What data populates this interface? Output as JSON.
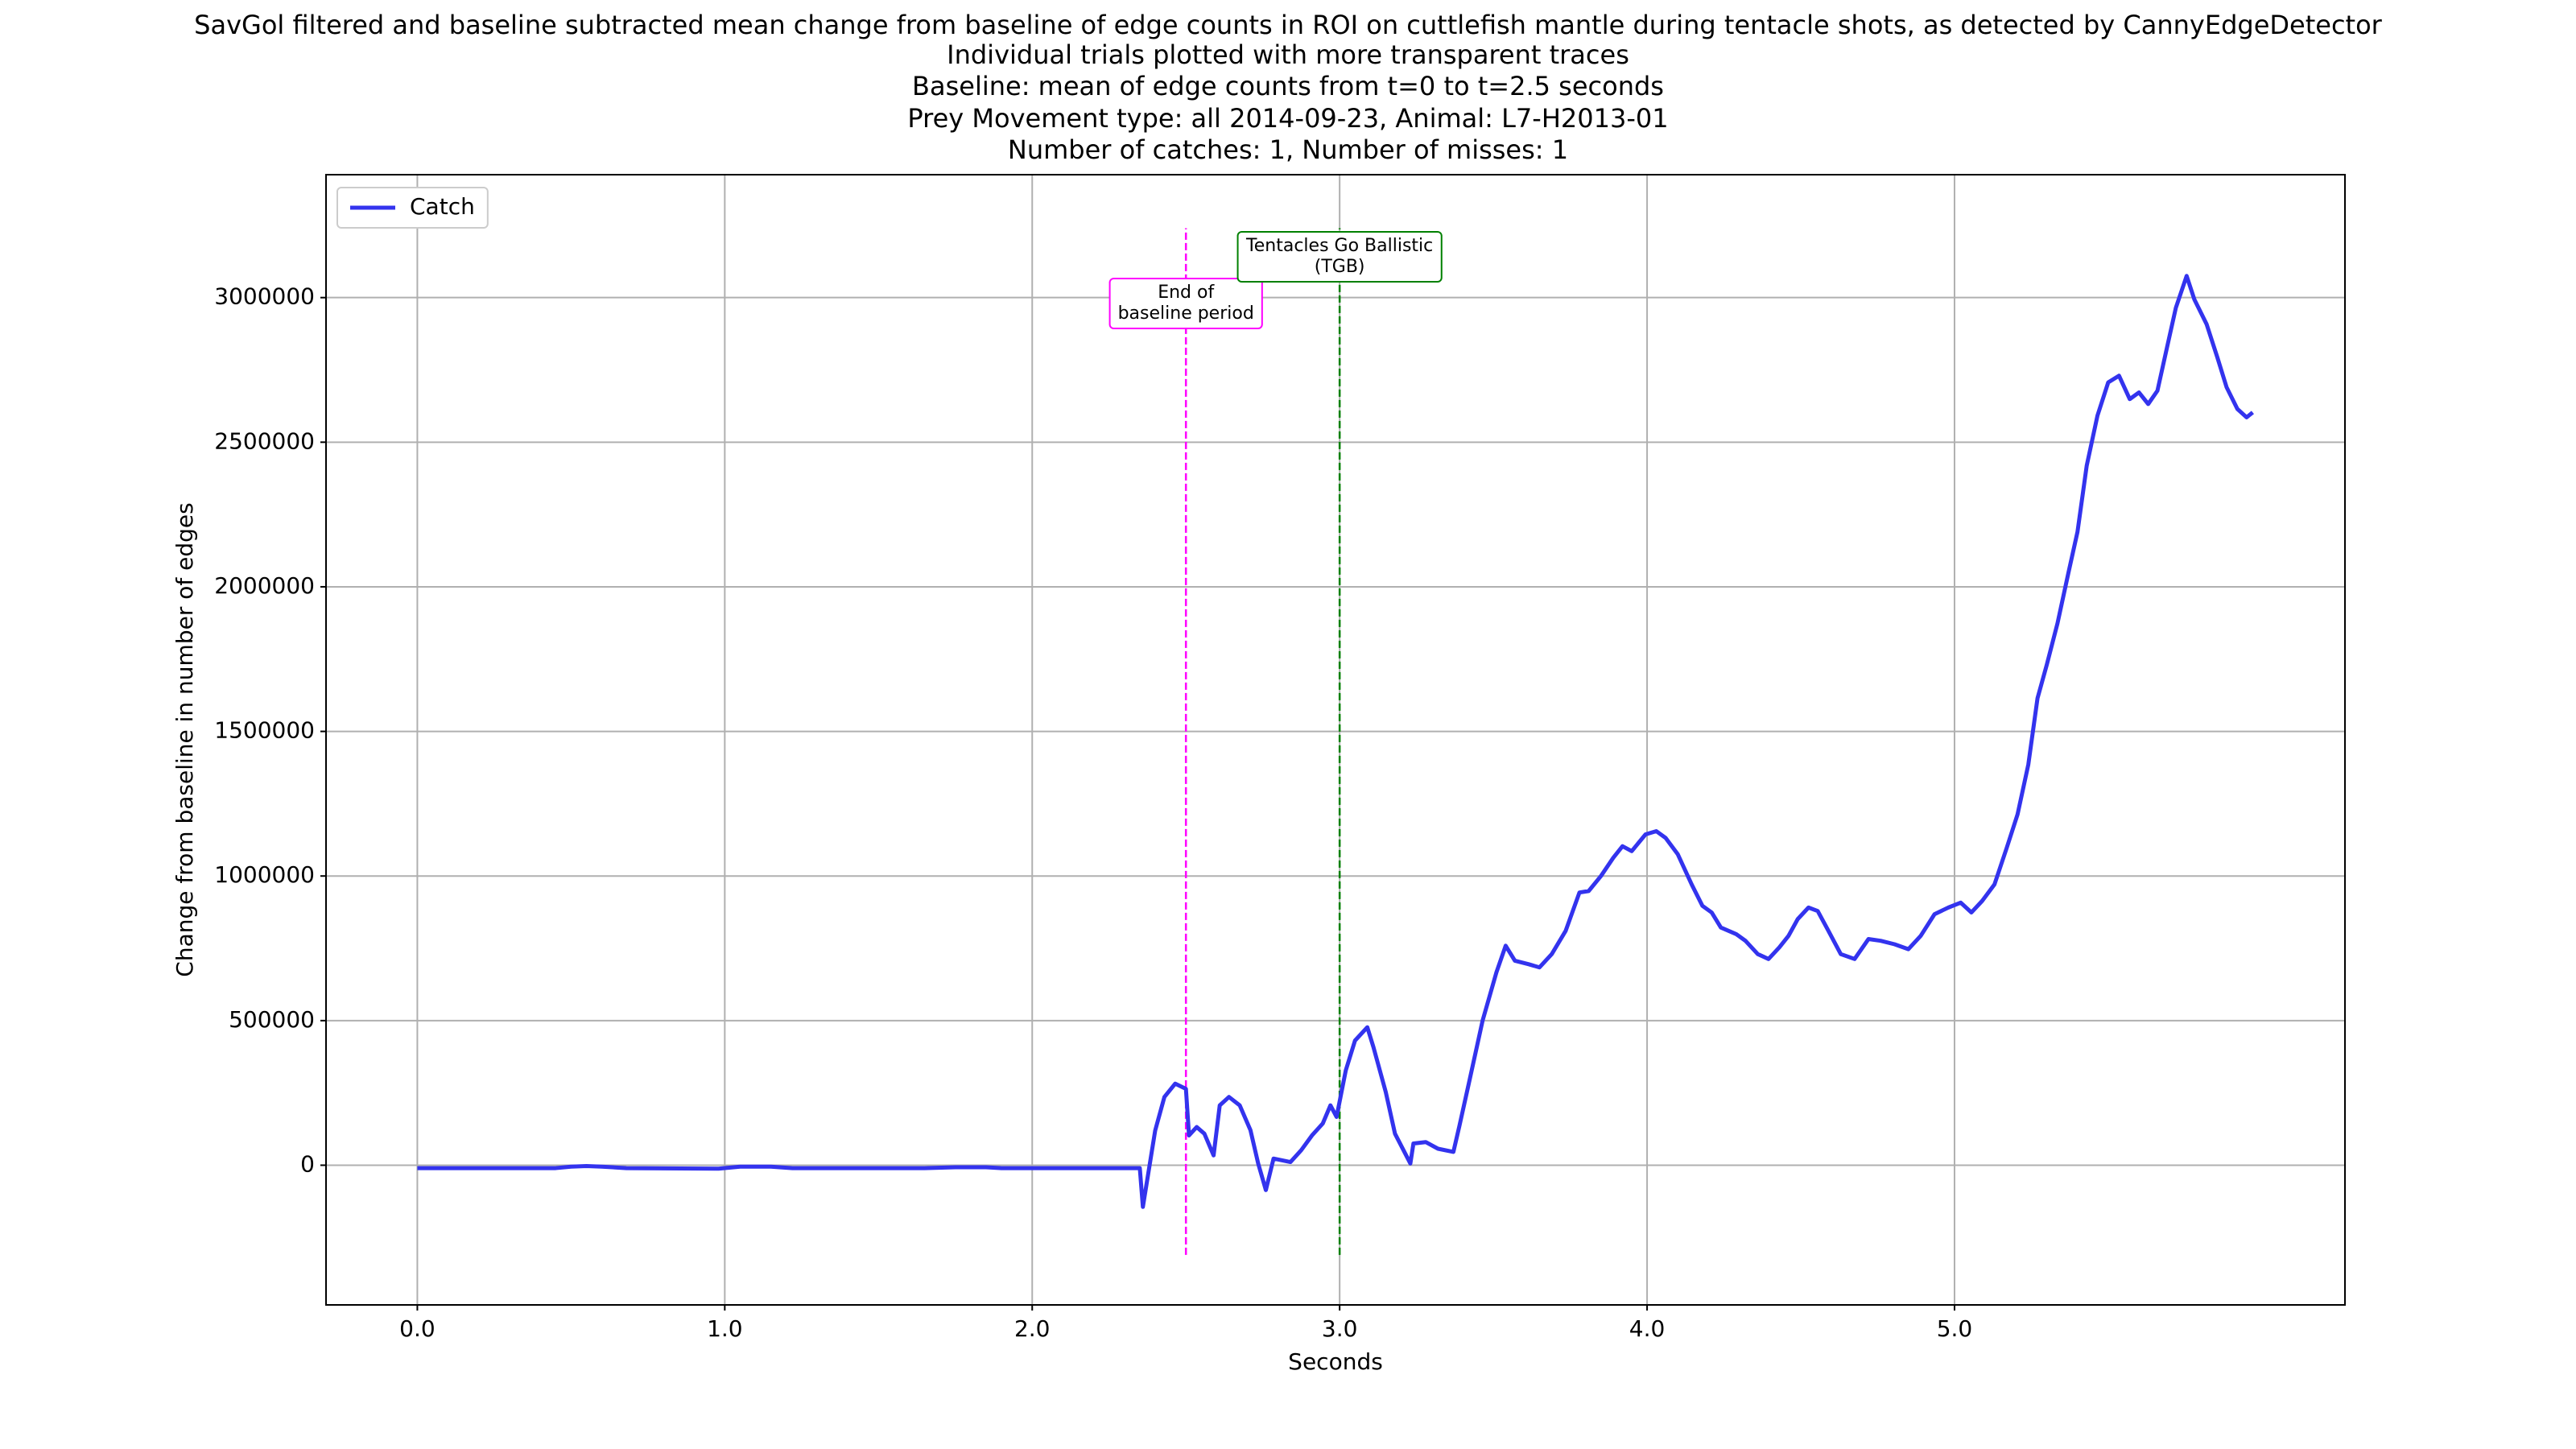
{
  "chart_data": {
    "type": "line",
    "title": [
      "SavGol filtered and baseline subtracted mean change from baseline of edge counts in ROI on cuttlefish mantle during tentacle shots, as detected by CannyEdgeDetector",
      "Individual trials plotted with more transparent traces",
      "Baseline: mean of edge counts from t=0 to t=2.5 seconds",
      "Prey Movement type: all 2014-09-23, Animal: L7-H2013-01",
      "Number of catches: 1, Number of misses: 1"
    ],
    "xlabel": "Seconds",
    "ylabel": "Change from baseline in number of edges",
    "xlim": [
      -0.297,
      6.27
    ],
    "ylim": [
      -483000,
      3425000
    ],
    "xticks": [
      {
        "value": 0,
        "label": "0.0"
      },
      {
        "value": 1,
        "label": "1.0"
      },
      {
        "value": 2,
        "label": "2.0"
      },
      {
        "value": 3,
        "label": "3.0"
      },
      {
        "value": 4,
        "label": "4.0"
      },
      {
        "value": 5,
        "label": "5.0"
      }
    ],
    "yticks": [
      0,
      500000,
      1000000,
      1500000,
      2000000,
      2500000,
      3000000
    ],
    "grid": true,
    "legend": "upper-left",
    "x": [
      0,
      0.45,
      0.5,
      0.55,
      0.6,
      0.68,
      0.98,
      1.05,
      1.15,
      1.22,
      1.65,
      1.75,
      1.85,
      1.9,
      2.35,
      2.36,
      2.4,
      2.43,
      2.465,
      2.5,
      2.51,
      2.535,
      2.56,
      2.59,
      2.61,
      2.64,
      2.675,
      2.71,
      2.735,
      2.76,
      2.785,
      2.84,
      2.875,
      2.91,
      2.945,
      2.97,
      2.99,
      3.02,
      3.05,
      3.09,
      3.11,
      3.15,
      3.18,
      3.23,
      3.24,
      3.28,
      3.32,
      3.37,
      3.39,
      3.42,
      3.465,
      3.51,
      3.54,
      3.57,
      3.615,
      3.65,
      3.69,
      3.735,
      3.78,
      3.81,
      3.85,
      3.89,
      3.92,
      3.95,
      3.995,
      4.03,
      4.06,
      4.1,
      4.145,
      4.18,
      4.21,
      4.24,
      4.29,
      4.32,
      4.36,
      4.395,
      4.43,
      4.46,
      4.49,
      4.525,
      4.555,
      4.59,
      4.63,
      4.675,
      4.72,
      4.76,
      4.805,
      4.85,
      4.89,
      4.935,
      4.98,
      5.02,
      5.055,
      5.09,
      5.13,
      5.17,
      5.205,
      5.24,
      5.27,
      5.3,
      5.335,
      5.37,
      5.4,
      5.43,
      5.465,
      5.5,
      5.535,
      5.57,
      5.6,
      5.63,
      5.66,
      5.69,
      5.72,
      5.755,
      5.78,
      5.82,
      5.855,
      5.885,
      5.92,
      5.95,
      5.97
    ],
    "series": [
      {
        "name": "Catch",
        "color": "#3333ee",
        "values": [
          -10000,
          -10000,
          -5000,
          -3000,
          -5000,
          -10000,
          -12000,
          -5000,
          -5000,
          -10000,
          -10000,
          -7000,
          -7000,
          -10000,
          -10000,
          -144000,
          120000,
          236000,
          282000,
          264000,
          103000,
          132000,
          109000,
          34000,
          207000,
          236000,
          207000,
          121000,
          6000,
          -86000,
          23000,
          11000,
          52000,
          103000,
          144000,
          207000,
          167000,
          328000,
          431000,
          477000,
          408000,
          253000,
          109000,
          6000,
          75000,
          80000,
          57000,
          46000,
          138000,
          282000,
          500000,
          667000,
          759000,
          707000,
          695000,
          684000,
          730000,
          810000,
          943000,
          948000,
          1000000,
          1063000,
          1103000,
          1086000,
          1144000,
          1155000,
          1132000,
          1075000,
          971000,
          897000,
          874000,
          822000,
          799000,
          776000,
          730000,
          713000,
          753000,
          793000,
          851000,
          891000,
          879000,
          810000,
          730000,
          713000,
          782000,
          776000,
          764000,
          747000,
          793000,
          868000,
          891000,
          908000,
          874000,
          914000,
          971000,
          1098000,
          1213000,
          1385000,
          1615000,
          1730000,
          1874000,
          2046000,
          2190000,
          2419000,
          2592000,
          2707000,
          2730000,
          2649000,
          2672000,
          2632000,
          2678000,
          2822000,
          2965000,
          3075000,
          2994000,
          2908000,
          2793000,
          2690000,
          2615000,
          2586000,
          2603000
        ]
      }
    ],
    "vlines": [
      {
        "x": 2.5,
        "ymin": -310000,
        "ymax": 3240000,
        "color": "#ff00ff",
        "text": [
          "End of",
          "baseline period"
        ]
      },
      {
        "x": 3.0,
        "ymin": -310000,
        "ymax": 3240000,
        "color": "#008000",
        "text": [
          "Tentacles Go Ballistic",
          "(TGB)"
        ]
      }
    ]
  }
}
